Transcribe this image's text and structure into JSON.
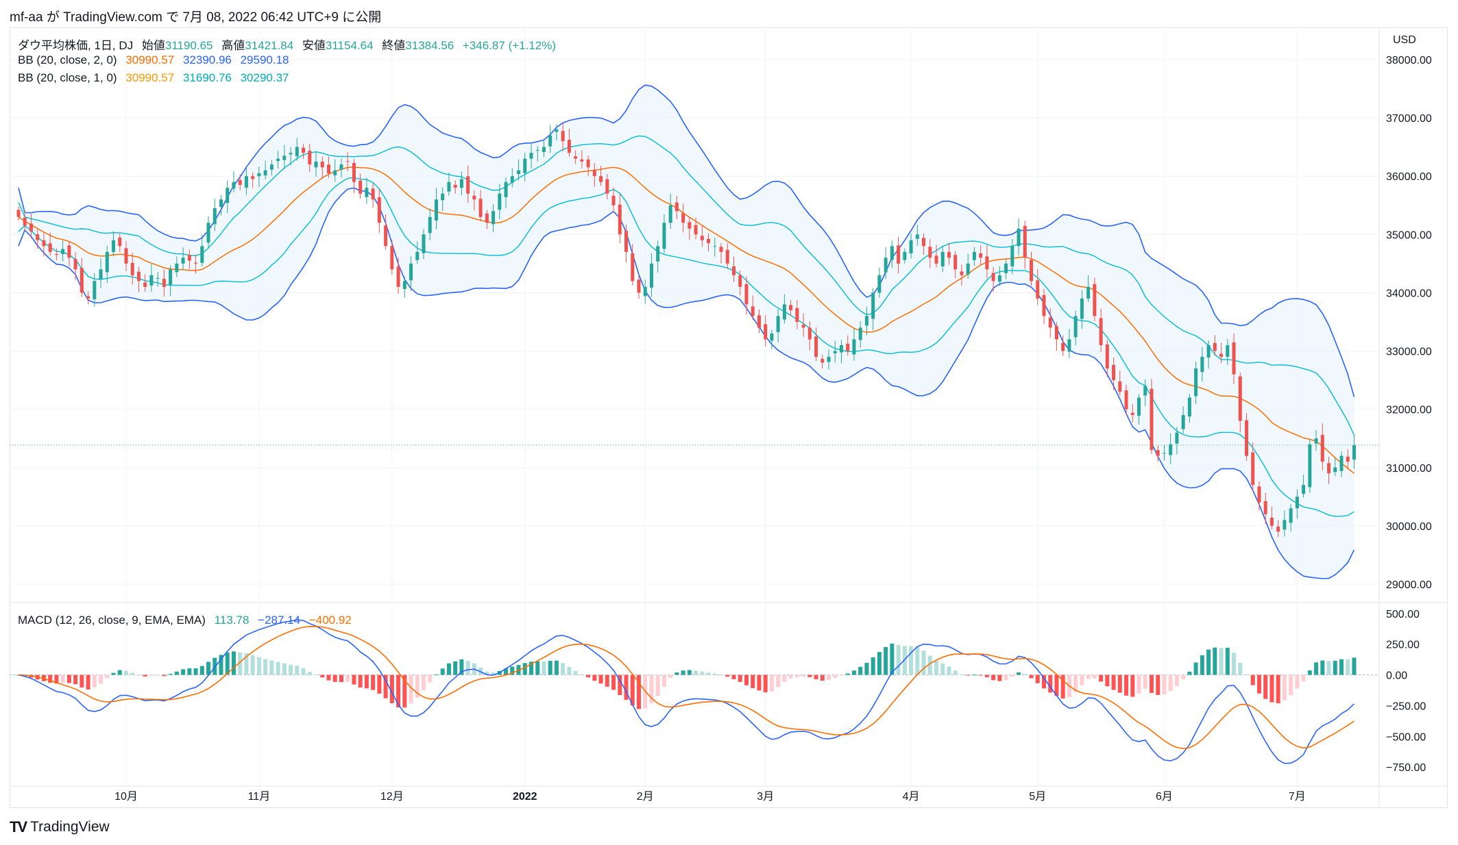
{
  "header": {
    "publisher": "mf-aa が TradingView.com で 7月 08, 2022 06:42 UTC+9 に公開"
  },
  "brand": {
    "name": "TradingView",
    "logo": "TV"
  },
  "currency": "USD",
  "legend": {
    "symbol": "ダウ平均株価, 1日, DJ",
    "open_label": "始値",
    "open": "31190.65",
    "high_label": "高値",
    "high": "31421.84",
    "low_label": "安値",
    "low": "31154.64",
    "close_label": "終値",
    "close": "31384.56",
    "change": "+346.87 (+1.12%)",
    "bb2": {
      "label": "BB (20, close, 2, 0)",
      "basis": "30990.57",
      "upper": "32390.96",
      "lower": "29590.18"
    },
    "bb1": {
      "label": "BB (20, close, 1, 0)",
      "basis": "30990.57",
      "upper": "31690.76",
      "lower": "30290.37"
    },
    "macd": {
      "label": "MACD (12, 26, close, 9, EMA, EMA)",
      "hist": "113.78",
      "macd": "−287.14",
      "signal": "−400.92"
    }
  },
  "colors": {
    "up": "#26a69a",
    "down": "#ef5350",
    "basis": "#ff6d00",
    "bb2": "#2962ff",
    "bb1": "#00bcd4",
    "fill": "#e3f2fd",
    "macd_line": "#2962ff",
    "signal_line": "#ff6d00",
    "hist_up_strong": "#26a69a",
    "hist_up_weak": "#b2dfdb",
    "hist_down_strong": "#ff5252",
    "hist_down_weak": "#ffcdd2"
  },
  "chart_data": [
    {
      "type": "candlestick",
      "title": "ダウ平均株価, 1日, DJ",
      "ylim": [
        28800,
        38200
      ],
      "y_ticks": [
        "29000.00",
        "30000.00",
        "31000.00",
        "32000.00",
        "33000.00",
        "34000.00",
        "35000.00",
        "36000.00",
        "37000.00",
        "38000.00"
      ],
      "y_tick_values": [
        29000,
        30000,
        31000,
        32000,
        33000,
        34000,
        35000,
        36000,
        37000,
        38000
      ],
      "x_labels": [
        {
          "label": "10月",
          "index": 17
        },
        {
          "label": "11月",
          "index": 38
        },
        {
          "label": "12月",
          "index": 59
        },
        {
          "label": "2022",
          "index": 80
        },
        {
          "label": "2月",
          "index": 99
        },
        {
          "label": "3月",
          "index": 118
        },
        {
          "label": "4月",
          "index": 141
        },
        {
          "label": "5月",
          "index": 161
        },
        {
          "label": "6月",
          "index": 181
        },
        {
          "label": "7月",
          "index": 202
        }
      ],
      "n_bars": 210,
      "last_close": 31384.56,
      "closes": [
        35300,
        35150,
        35050,
        34900,
        34800,
        34700,
        34650,
        34750,
        34600,
        34400,
        34000,
        33900,
        34200,
        34400,
        34700,
        34900,
        34800,
        34500,
        34300,
        34200,
        34100,
        34300,
        34250,
        34100,
        34400,
        34500,
        34600,
        34550,
        34500,
        34800,
        35200,
        35450,
        35600,
        35800,
        35900,
        35850,
        36000,
        35950,
        36050,
        36100,
        36200,
        36300,
        36350,
        36400,
        36500,
        36400,
        36200,
        36250,
        36150,
        36050,
        36100,
        36200,
        36250,
        35900,
        35700,
        35800,
        35600,
        35200,
        34800,
        34400,
        34100,
        34200,
        34500,
        34700,
        35000,
        35300,
        35600,
        35700,
        35900,
        35800,
        35950,
        35700,
        35600,
        35300,
        35200,
        35400,
        35700,
        35900,
        36000,
        36100,
        36300,
        36400,
        36450,
        36500,
        36700,
        36800,
        36600,
        36400,
        36300,
        36250,
        36150,
        36000,
        35900,
        35700,
        35500,
        35000,
        34700,
        34200,
        34000,
        34100,
        34500,
        34800,
        35200,
        35500,
        35400,
        35200,
        35100,
        35000,
        34900,
        34850,
        34800,
        34700,
        34500,
        34300,
        34100,
        33800,
        33600,
        33400,
        33200,
        33300,
        33600,
        33800,
        33700,
        33500,
        33400,
        33200,
        32900,
        32800,
        32900,
        33000,
        33100,
        33000,
        33200,
        33400,
        33600,
        34000,
        34300,
        34600,
        34800,
        34500,
        34700,
        34900,
        35000,
        34800,
        34600,
        34500,
        34700,
        34600,
        34400,
        34300,
        34500,
        34700,
        34600,
        34400,
        34200,
        34300,
        34500,
        34800,
        35100,
        34600,
        34200,
        33900,
        33600,
        33400,
        33200,
        33000,
        33200,
        33600,
        33900,
        34100,
        33600,
        33100,
        32700,
        32500,
        32300,
        32000,
        31900,
        32200,
        32400,
        31300,
        31200,
        31250,
        31400,
        31600,
        31900,
        32200,
        32700,
        32900,
        33100,
        33000,
        32900,
        33100,
        32600,
        31800,
        31200,
        30700,
        30400,
        30200,
        30000,
        29900,
        30100,
        30300,
        30500,
        30700,
        31400,
        31500,
        31100,
        30900,
        31000,
        31200,
        31100,
        31384
      ]
    },
    {
      "type": "macd",
      "title": "MACD (12, 26, close, 9, EMA, EMA)",
      "ylim": [
        -860,
        560
      ],
      "y_ticks": [
        "500.00",
        "250.00",
        "0.00",
        "−250.00",
        "−500.00",
        "−750.00"
      ],
      "y_tick_values": [
        500,
        250,
        0,
        -250,
        -500,
        -750
      ],
      "last_values": {
        "histogram": 113.78,
        "macd": -287.14,
        "signal": -400.92
      }
    }
  ]
}
